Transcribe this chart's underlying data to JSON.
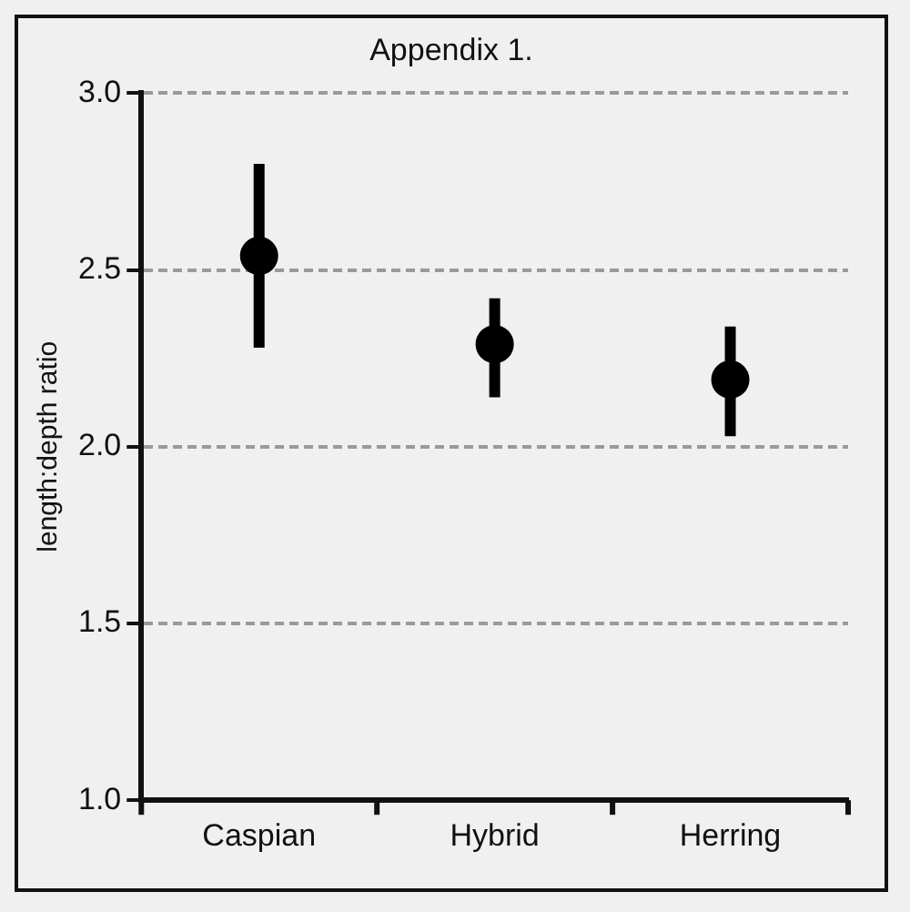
{
  "chart_data": {
    "type": "scatter",
    "title": "Appendix 1.",
    "ylabel": "length:depth ratio",
    "categories": [
      "Caspian",
      "Hybrid",
      "Herring"
    ],
    "series": [
      {
        "color": "#000000",
        "x": [
          "Caspian",
          "Hybrid",
          "Herring"
        ],
        "values": [
          2.54,
          2.29,
          2.19
        ],
        "errors": [
          [
            2.28,
            2.8
          ],
          [
            2.14,
            2.42
          ],
          [
            2.03,
            2.34
          ]
        ]
      }
    ],
    "ylim": [
      1,
      3
    ],
    "yticks": [
      {
        "value": 1,
        "label": "1.0"
      },
      1.5,
      {
        "value": 2,
        "label": "2.0"
      },
      2.5,
      {
        "value": 3,
        "label": "3.0"
      }
    ],
    "grid": "y",
    "marker": "circle",
    "legend": false
  }
}
